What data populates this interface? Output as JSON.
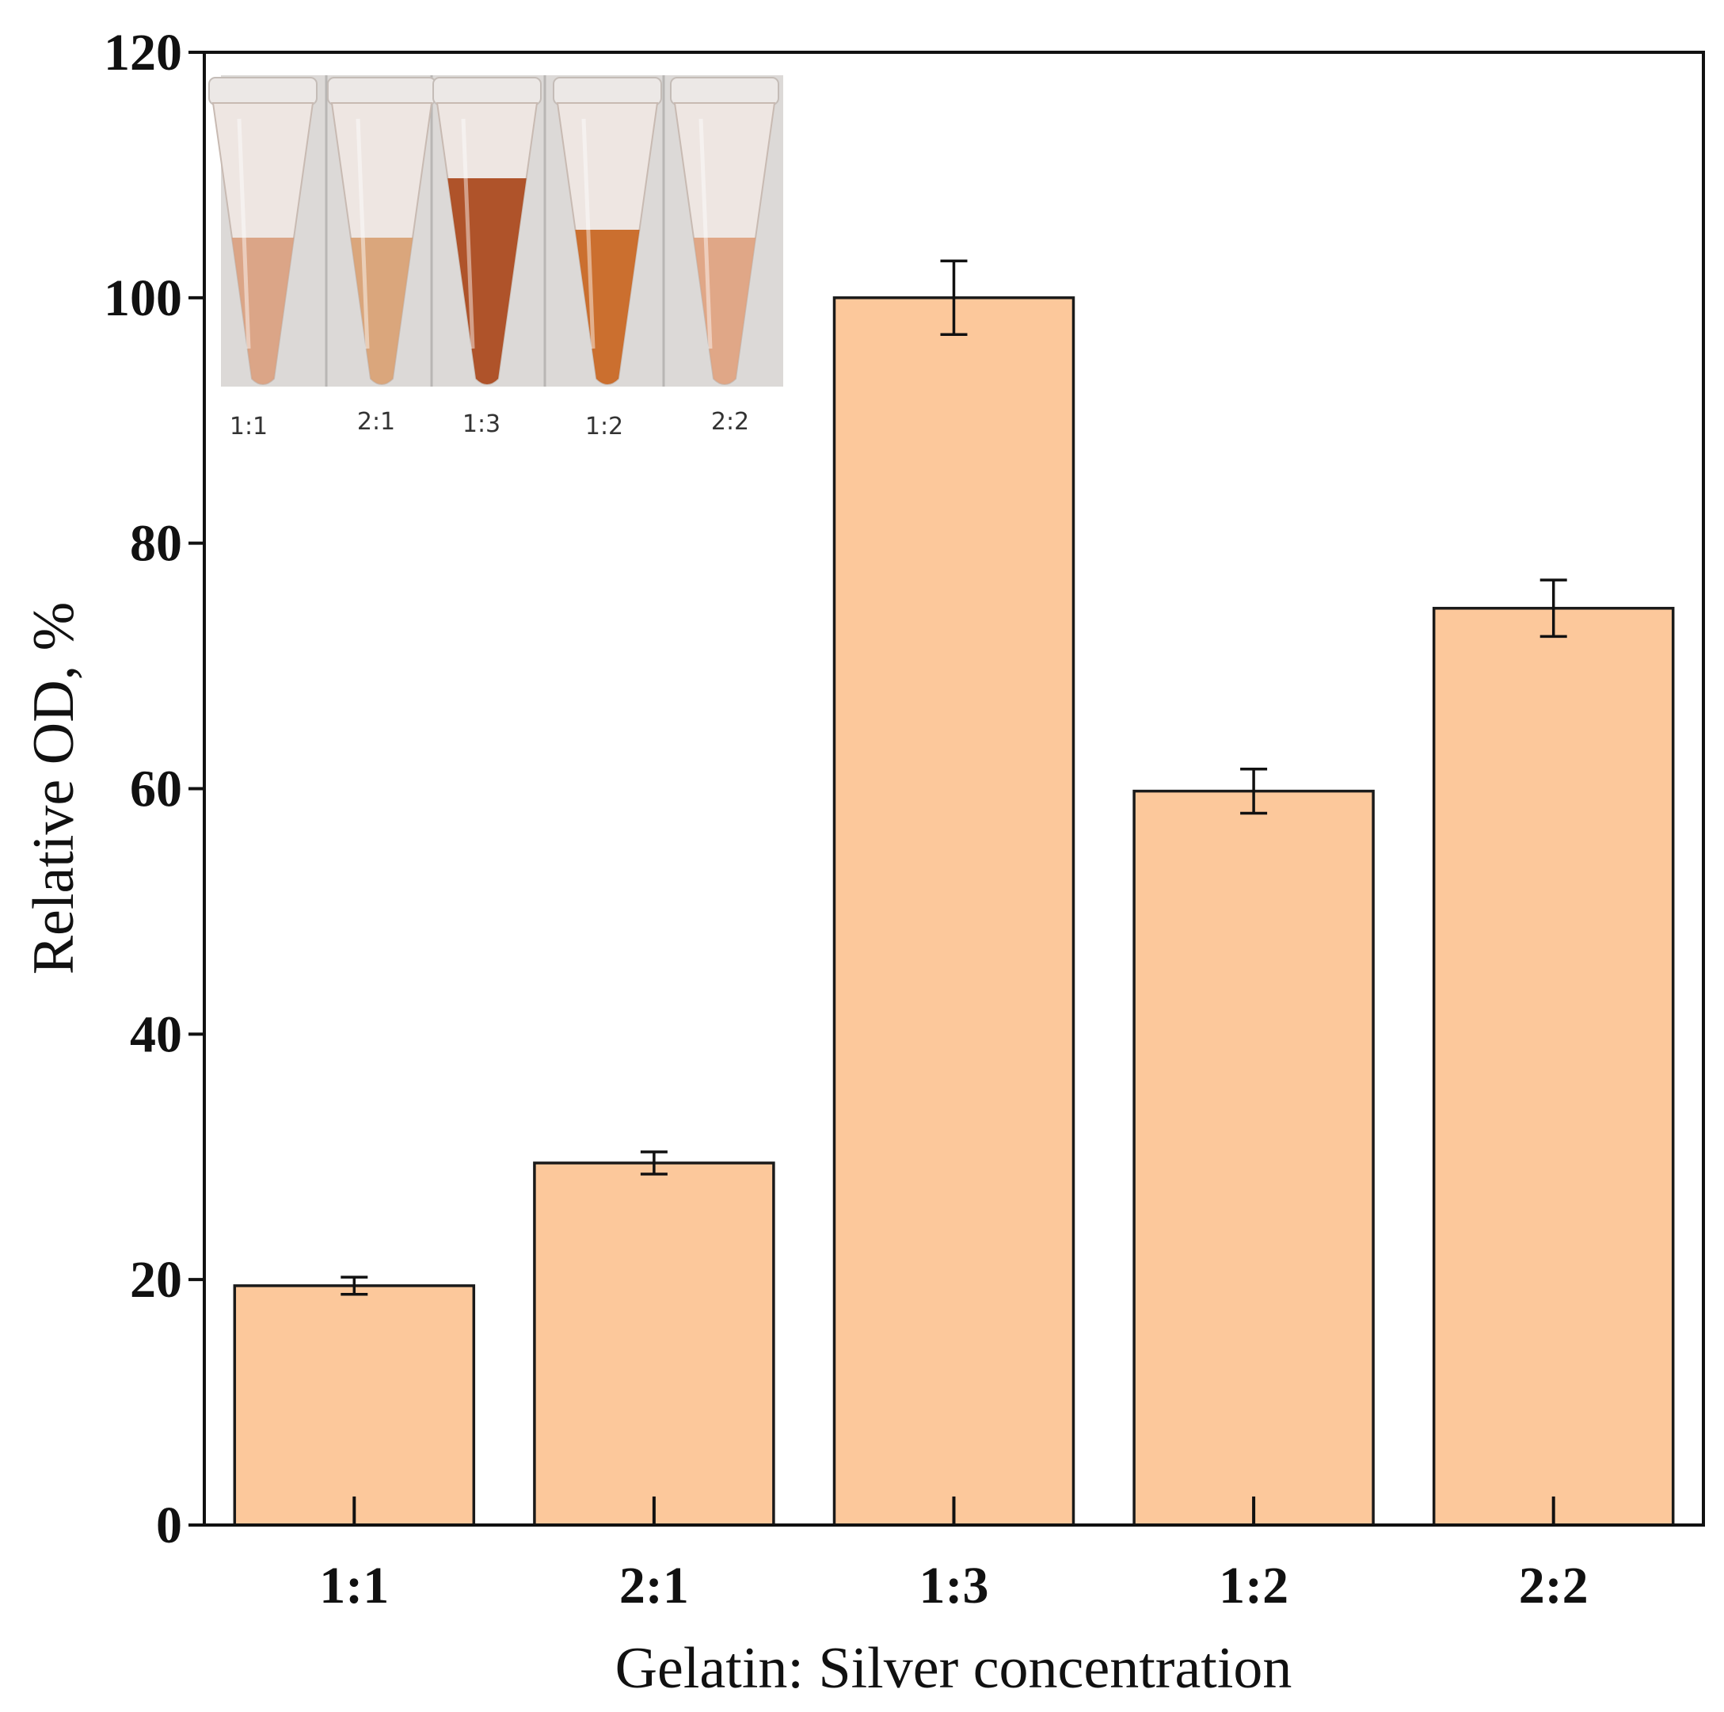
{
  "chart_data": {
    "type": "bar",
    "categories": [
      "1:1",
      "2:1",
      "1:3",
      "1:2",
      "2:2"
    ],
    "values": [
      19.5,
      29.5,
      100,
      59.8,
      74.7
    ],
    "errors": [
      0.7,
      0.9,
      3.0,
      1.8,
      2.3
    ],
    "title": "",
    "xlabel": "Gelatin: Silver concentration",
    "ylabel": "Relative OD, %",
    "ylim": [
      0,
      120
    ],
    "yticks": [
      0,
      20,
      40,
      60,
      80,
      100,
      120
    ],
    "grid": false,
    "bar_color": "#fcc89b",
    "edge_color": "#1a1a1a"
  },
  "inset": {
    "labels": [
      "1:1",
      "2:1",
      "1:3",
      "1:2",
      "2:2"
    ],
    "tube_colors": [
      "#d9a07f",
      "#d8a173",
      "#a9461a",
      "#c8651f",
      "#dea27f"
    ],
    "background_color": "#dcd9d7"
  }
}
